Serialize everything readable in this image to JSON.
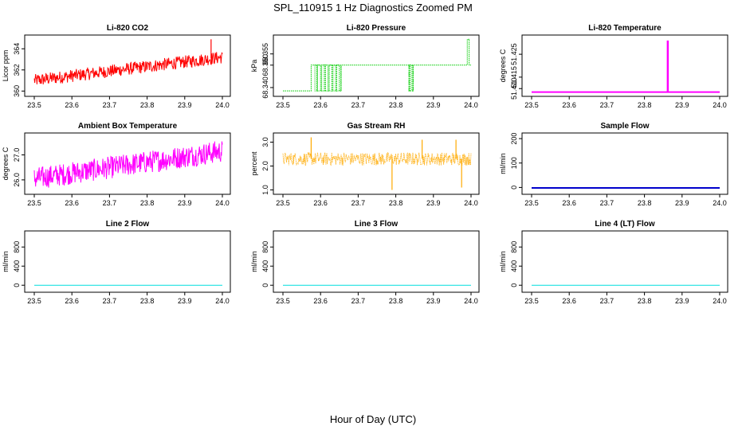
{
  "figure": {
    "title": "SPL_110915  1 Hz Diagnostics Zoomed PM",
    "xlabel": "Hour of Day (UTC)"
  },
  "chart_data": [
    {
      "id": "co2",
      "type": "line",
      "title": "Li-820 CO2",
      "ylabel": "Licor ppm",
      "xlim": [
        23.5,
        24.0
      ],
      "ylim": [
        359.8,
        365.0
      ],
      "x_ticks": [
        "23.5",
        "23.6",
        "23.7",
        "23.8",
        "23.9",
        "24.0"
      ],
      "y_ticks": [
        {
          "v": 360,
          "t": "360"
        },
        {
          "v": 362,
          "t": "362"
        },
        {
          "v": 364,
          "t": "364"
        }
      ],
      "color": "#ff0000",
      "style": "noisy",
      "trend": [
        [
          23.5,
          361.0
        ],
        [
          24.0,
          363.2
        ]
      ],
      "noise": 1.2,
      "spikes": [
        [
          23.97,
          364.9
        ]
      ]
    },
    {
      "id": "pressure",
      "type": "line",
      "title": "Li-820 Pressure",
      "ylabel": "kPa",
      "xlim": [
        23.5,
        24.0
      ],
      "ylim": [
        68.3375,
        68.362
      ],
      "x_ticks": [
        "23.5",
        "23.6",
        "23.7",
        "23.8",
        "23.9",
        "24.0"
      ],
      "y_ticks": [
        {
          "v": 68.34,
          "t": "68.340"
        },
        {
          "v": 68.35,
          "t": "68.350"
        },
        {
          "v": 68.355,
          "t": "68.355"
        }
      ],
      "color": "#00cc00",
      "style": "step",
      "steps": [
        [
          23.5,
          68.3385
        ],
        [
          23.575,
          68.3385
        ],
        [
          23.575,
          68.35
        ],
        [
          23.59,
          68.3385
        ],
        [
          23.592,
          68.35
        ],
        [
          23.6,
          68.3385
        ],
        [
          23.603,
          68.35
        ],
        [
          23.61,
          68.3385
        ],
        [
          23.613,
          68.35
        ],
        [
          23.62,
          68.3385
        ],
        [
          23.623,
          68.35
        ],
        [
          23.63,
          68.3385
        ],
        [
          23.633,
          68.35
        ],
        [
          23.64,
          68.3385
        ],
        [
          23.643,
          68.35
        ],
        [
          23.65,
          68.3385
        ],
        [
          23.654,
          68.35
        ],
        [
          23.835,
          68.3385
        ],
        [
          23.838,
          68.35
        ],
        [
          23.843,
          68.3385
        ],
        [
          23.846,
          68.35
        ],
        [
          23.99,
          68.35
        ],
        [
          23.99,
          68.3615
        ],
        [
          23.995,
          68.35
        ],
        [
          24.0,
          68.35
        ]
      ]
    },
    {
      "id": "licor_temp",
      "type": "line",
      "title": "Li-820 Temperature",
      "ylabel": "degrees C",
      "xlim": [
        23.5,
        24.0
      ],
      "ylim": [
        51.408,
        51.432
      ],
      "x_ticks": [
        "23.5",
        "23.6",
        "23.7",
        "23.8",
        "23.9",
        "24.0"
      ],
      "y_ticks": [
        {
          "v": 51.41,
          "t": "51.410"
        },
        {
          "v": 51.415,
          "t": "51.415"
        },
        {
          "v": 51.425,
          "t": "51.425"
        }
      ],
      "color": "#ff00ff",
      "style": "flat_spike",
      "base": 51.4085,
      "spike_x": 23.862,
      "spike_y": 51.431
    },
    {
      "id": "box_temp",
      "type": "line",
      "title": "Ambient Box Temperature",
      "ylabel": "degrees C",
      "xlim": [
        23.5,
        24.0
      ],
      "ylim": [
        25.55,
        27.75
      ],
      "x_ticks": [
        "23.5",
        "23.6",
        "23.7",
        "23.8",
        "23.9",
        "24.0"
      ],
      "y_ticks": [
        {
          "v": 26.0,
          "t": "26.0"
        },
        {
          "v": 27.0,
          "t": "27.0"
        }
      ],
      "color": "#ff00ff",
      "style": "noisy",
      "trend": [
        [
          23.5,
          26.05
        ],
        [
          24.0,
          27.15
        ]
      ],
      "noise": 0.9,
      "spikes": []
    },
    {
      "id": "rh",
      "type": "line",
      "title": "Gas Stream RH",
      "ylabel": "percent",
      "xlim": [
        23.5,
        24.0
      ],
      "ylim": [
        0.95,
        3.25
      ],
      "x_ticks": [
        "23.5",
        "23.6",
        "23.7",
        "23.8",
        "23.9",
        "24.0"
      ],
      "y_ticks": [
        {
          "v": 1.0,
          "t": "1.0"
        },
        {
          "v": 2.0,
          "t": "2.0"
        },
        {
          "v": 3.0,
          "t": "3.0"
        }
      ],
      "color": "#ffaa00",
      "style": "noisy_dots",
      "trend": [
        [
          23.5,
          2.3
        ],
        [
          24.0,
          2.3
        ]
      ],
      "noise": 0.55,
      "spikes": [
        [
          23.575,
          3.2
        ],
        [
          23.79,
          1.0
        ],
        [
          23.87,
          3.1
        ],
        [
          23.96,
          3.1
        ],
        [
          23.975,
          1.1
        ]
      ]
    },
    {
      "id": "sample_flow",
      "type": "line",
      "title": "Sample Flow",
      "ylabel": "ml/min",
      "xlim": [
        23.5,
        24.0
      ],
      "ylim": [
        -15,
        210
      ],
      "x_ticks": [
        "23.5",
        "23.6",
        "23.7",
        "23.8",
        "23.9",
        "24.0"
      ],
      "y_ticks": [
        {
          "v": 0,
          "t": "0"
        },
        {
          "v": 100,
          "t": "100"
        },
        {
          "v": 200,
          "t": "200"
        }
      ],
      "color": "#0000cc",
      "style": "flat",
      "value": -2
    },
    {
      "id": "line2",
      "type": "line",
      "title": "Line 2 Flow",
      "ylabel": "ml/min",
      "xlim": [
        23.5,
        24.0
      ],
      "ylim": [
        -80,
        1070
      ],
      "x_ticks": [
        "23.5",
        "23.6",
        "23.7",
        "23.8",
        "23.9",
        "24.0"
      ],
      "y_ticks": [
        {
          "v": 0,
          "t": "0"
        },
        {
          "v": 400,
          "t": "400"
        },
        {
          "v": 800,
          "t": "800"
        }
      ],
      "color": "#00dddd",
      "style": "flat",
      "value": 0
    },
    {
      "id": "line3",
      "type": "line",
      "title": "Line 3 Flow",
      "ylabel": "ml/min",
      "xlim": [
        23.5,
        24.0
      ],
      "ylim": [
        -80,
        1070
      ],
      "x_ticks": [
        "23.5",
        "23.6",
        "23.7",
        "23.8",
        "23.9",
        "24.0"
      ],
      "y_ticks": [
        {
          "v": 0,
          "t": "0"
        },
        {
          "v": 400,
          "t": "400"
        },
        {
          "v": 800,
          "t": "800"
        }
      ],
      "color": "#00dddd",
      "style": "flat",
      "value": 0
    },
    {
      "id": "line4",
      "type": "line",
      "title": "Line 4 (LT) Flow",
      "ylabel": "ml/min",
      "xlim": [
        23.5,
        24.0
      ],
      "ylim": [
        -80,
        1070
      ],
      "x_ticks": [
        "23.5",
        "23.6",
        "23.7",
        "23.8",
        "23.9",
        "24.0"
      ],
      "y_ticks": [
        {
          "v": 0,
          "t": "0"
        },
        {
          "v": 400,
          "t": "400"
        },
        {
          "v": 800,
          "t": "800"
        }
      ],
      "color": "#00dddd",
      "style": "flat",
      "value": 0
    }
  ]
}
